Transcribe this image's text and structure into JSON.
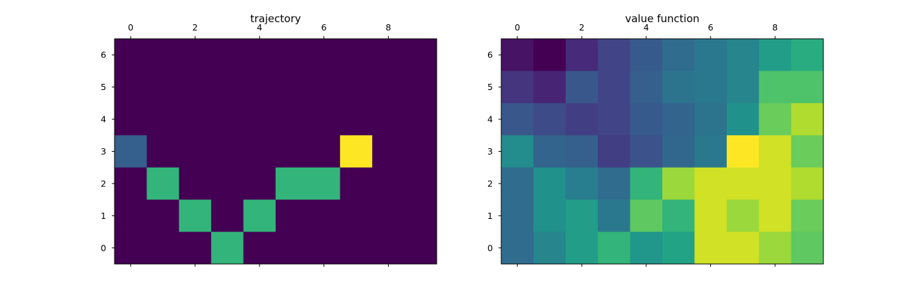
{
  "chart_data": [
    {
      "type": "heatmap",
      "title": "trajectory",
      "colormap": "viridis",
      "x_ticks": [
        0,
        2,
        4,
        6,
        8
      ],
      "y_ticks": [
        0,
        1,
        2,
        3,
        4,
        5,
        6
      ],
      "x_range": [
        -0.5,
        9.5
      ],
      "y_range": [
        -0.5,
        6.5
      ],
      "x_axis_position": "top",
      "value_range": [
        0,
        1
      ],
      "rows_top_to_bottom": [
        [
          0,
          0,
          0,
          0,
          0,
          0,
          0,
          0,
          0,
          0
        ],
        [
          0,
          0,
          0,
          0,
          0,
          0,
          0,
          0,
          0,
          0
        ],
        [
          0,
          0,
          0,
          0,
          0,
          0,
          0,
          0,
          0,
          0
        ],
        [
          0.3,
          0,
          0,
          0,
          0,
          0,
          0,
          1,
          0,
          0
        ],
        [
          0,
          0.65,
          0,
          0,
          0,
          0.65,
          0.65,
          0,
          0,
          0
        ],
        [
          0,
          0,
          0.65,
          0,
          0.65,
          0,
          0,
          0,
          0,
          0
        ],
        [
          0,
          0,
          0,
          0.65,
          0,
          0,
          0,
          0,
          0,
          0
        ]
      ]
    },
    {
      "type": "heatmap",
      "title": "value function",
      "colormap": "viridis",
      "x_ticks": [
        0,
        2,
        4,
        6,
        8
      ],
      "y_ticks": [
        0,
        1,
        2,
        3,
        4,
        5,
        6
      ],
      "x_range": [
        -0.5,
        9.5
      ],
      "y_range": [
        -0.5,
        6.5
      ],
      "x_axis_position": "top",
      "value_range": [
        0,
        1
      ],
      "rows_top_to_bottom": [
        [
          0.05,
          0.0,
          0.12,
          0.2,
          0.28,
          0.35,
          0.4,
          0.45,
          0.55,
          0.62
        ],
        [
          0.15,
          0.1,
          0.27,
          0.2,
          0.3,
          0.38,
          0.4,
          0.45,
          0.72,
          0.72
        ],
        [
          0.27,
          0.23,
          0.18,
          0.2,
          0.28,
          0.32,
          0.38,
          0.5,
          0.77,
          0.88
        ],
        [
          0.48,
          0.32,
          0.3,
          0.18,
          0.25,
          0.33,
          0.4,
          1.0,
          0.93,
          0.77
        ],
        [
          0.35,
          0.5,
          0.42,
          0.35,
          0.65,
          0.85,
          0.93,
          0.93,
          0.93,
          0.88
        ],
        [
          0.35,
          0.5,
          0.55,
          0.4,
          0.75,
          0.65,
          0.93,
          0.85,
          0.93,
          0.77
        ],
        [
          0.35,
          0.45,
          0.55,
          0.65,
          0.52,
          0.58,
          0.93,
          0.93,
          0.85,
          0.75
        ]
      ]
    }
  ]
}
